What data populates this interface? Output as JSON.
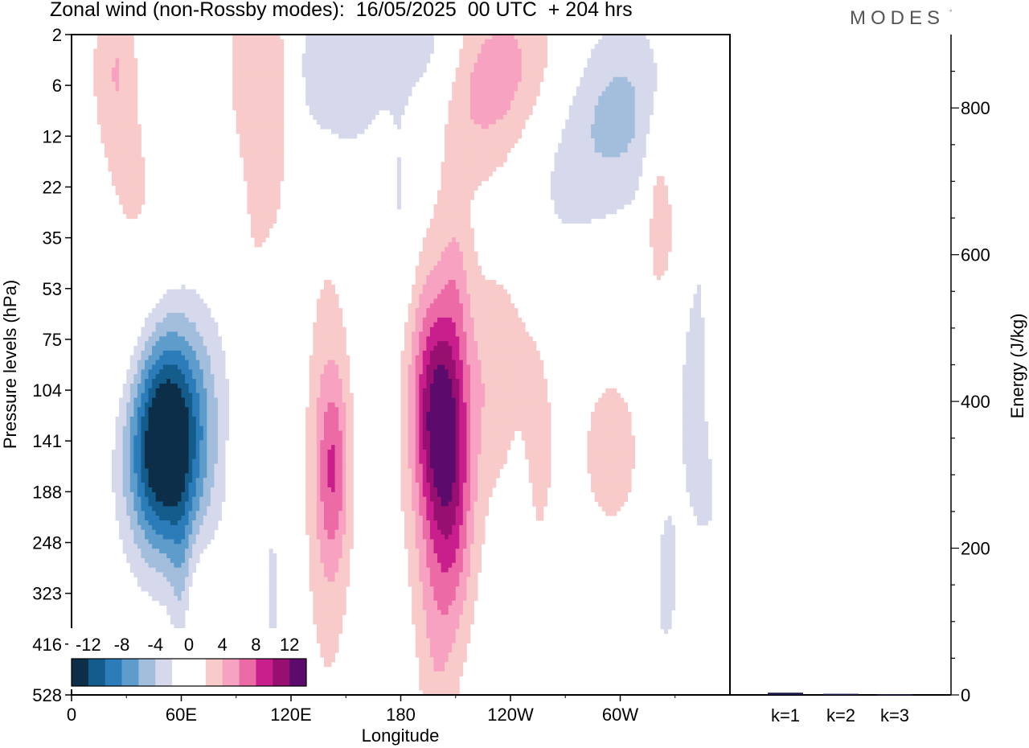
{
  "header": {
    "title": "Zonal wind (non-Rossby modes):  16/05/2025  00 UTC  + 204 hrs",
    "brand": "MODES",
    "brand_mark": "°"
  },
  "chart_data": [
    {
      "type": "heatmap",
      "title": "Zonal wind (non-Rossby modes):  16/05/2025  00 UTC  + 204 hrs",
      "xlabel": "Longitude",
      "ylabel": "Pressure levels (hPa)",
      "x_ticks": [
        "0",
        "60E",
        "120E",
        "180",
        "120W",
        "60W"
      ],
      "x_tick_values": [
        0,
        60,
        120,
        180,
        240,
        300
      ],
      "xlim": [
        0,
        360
      ],
      "y_ticks": [
        "2",
        "6",
        "12",
        "22",
        "35",
        "53",
        "75",
        "104",
        "141",
        "188",
        "248",
        "323",
        "416",
        "528"
      ],
      "colorbar": {
        "labels": [
          "-12",
          "-8",
          "-4",
          "0",
          "4",
          "8",
          "12"
        ],
        "label_values": [
          -12,
          -8,
          -4,
          0,
          4,
          8,
          12
        ],
        "colors": [
          "#0d2e49",
          "#145c8c",
          "#2b7cb8",
          "#5e9ccb",
          "#a3bedd",
          "#d6d9ec",
          "#ffffff",
          "#ffffff",
          "#f8cac9",
          "#f6a2c0",
          "#ec6ba6",
          "#c91f8c",
          "#971071",
          "#5c0a6b"
        ]
      },
      "anomalies": [
        {
          "lon": 50,
          "level": 141,
          "value": -13,
          "sx": 14,
          "sy": 1.5
        },
        {
          "lon": 58,
          "level": 125,
          "value": -5,
          "sx": 20,
          "sy": 1.8
        },
        {
          "lon": 203,
          "level": 130,
          "value": 7,
          "sx": 9,
          "sy": 1.3
        },
        {
          "lon": 203,
          "level": 150,
          "value": 4.5,
          "sx": 16,
          "sy": 2.6
        },
        {
          "lon": 143,
          "level": 165,
          "value": 5,
          "sx": 6,
          "sy": 1.3
        },
        {
          "lon": 140,
          "level": 170,
          "value": 3.5,
          "sx": 10,
          "sy": 3.5
        },
        {
          "lon": 195,
          "level": 85,
          "value": 3,
          "sx": 8,
          "sy": 1.5
        },
        {
          "lon": 200,
          "level": 340,
          "value": 3,
          "sx": 8,
          "sy": 3
        },
        {
          "lon": 210,
          "level": 230,
          "value": 3,
          "sx": 7,
          "sy": 1.5
        },
        {
          "lon": 195,
          "level": 3.2,
          "value": -6,
          "sx": 15,
          "sy": 1.3
        },
        {
          "lon": 150,
          "level": 4.3,
          "value": -4.5,
          "sx": 22,
          "sy": 1.3
        },
        {
          "lon": 205,
          "level": 6.2,
          "value": 5,
          "sx": 25,
          "sy": 1.3
        },
        {
          "lon": 250,
          "level": 4.5,
          "value": 4,
          "sx": 22,
          "sy": 1.4
        },
        {
          "lon": 300,
          "level": 8.5,
          "value": -4.5,
          "sx": 20,
          "sy": 1.4
        },
        {
          "lon": 265,
          "level": 14,
          "value": -3,
          "sx": 18,
          "sy": 1.6
        },
        {
          "lon": 40,
          "level": 13,
          "value": 3,
          "sx": 18,
          "sy": 1.8
        },
        {
          "lon": 25,
          "level": 3.2,
          "value": 3,
          "sx": 10,
          "sy": 1.3
        },
        {
          "lon": 45,
          "level": 5.5,
          "value": -3,
          "sx": 10,
          "sy": 1.3
        },
        {
          "lon": 36,
          "level": 88,
          "value": 3,
          "sx": 16,
          "sy": 1.4
        },
        {
          "lon": 330,
          "level": 30,
          "value": 3,
          "sx": 8,
          "sy": 1.3
        },
        {
          "lon": 340,
          "level": 40,
          "value": -2.5,
          "sx": 10,
          "sy": 3
        },
        {
          "lon": 352,
          "level": 110,
          "value": 3,
          "sx": 5,
          "sy": 1.3
        },
        {
          "lon": 350,
          "level": 150,
          "value": -3,
          "sx": 10,
          "sy": 1.6
        },
        {
          "lon": 325,
          "level": 300,
          "value": -2.5,
          "sx": 6,
          "sy": 1.6
        },
        {
          "lon": 295,
          "level": 150,
          "value": 3,
          "sx": 14,
          "sy": 1.4
        },
        {
          "lon": 255,
          "level": 150,
          "value": 2.5,
          "sx": 8,
          "sy": 1.8
        },
        {
          "lon": 235,
          "level": 90,
          "value": 3,
          "sx": 12,
          "sy": 1.6
        },
        {
          "lon": 210,
          "level": 55,
          "value": 3,
          "sx": 6,
          "sy": 1.3
        },
        {
          "lon": 180,
          "level": 25,
          "value": -2.5,
          "sx": 6,
          "sy": 1.3
        },
        {
          "lon": 105,
          "level": 25,
          "value": 3,
          "sx": 8,
          "sy": 1.8
        },
        {
          "lon": 10,
          "level": 40,
          "value": -2.5,
          "sx": 6,
          "sy": 1.2
        },
        {
          "lon": 60,
          "level": 320,
          "value": -2.5,
          "sx": 4,
          "sy": 1.3
        },
        {
          "lon": 110,
          "level": 330,
          "value": -2.5,
          "sx": 4,
          "sy": 1.4
        },
        {
          "lon": 90,
          "level": 170,
          "value": 2.5,
          "sx": 3,
          "sy": 1.2
        },
        {
          "lon": 70,
          "level": 420,
          "value": 2.5,
          "sx": 6,
          "sy": 1.2
        },
        {
          "lon": 245,
          "level": 260,
          "value": -2.5,
          "sx": 4,
          "sy": 1.6
        },
        {
          "lon": 108,
          "level": 70,
          "value": -2.5,
          "sx": 5,
          "sy": 1.2
        },
        {
          "lon": 320,
          "level": 25,
          "value": 3,
          "sx": 5,
          "sy": 1.3
        },
        {
          "lon": 115,
          "level": 4.5,
          "value": 3,
          "sx": 6,
          "sy": 1.4
        },
        {
          "lon": 95,
          "level": 3.5,
          "value": 3,
          "sx": 8,
          "sy": 1.4
        }
      ]
    },
    {
      "type": "bar",
      "ylabel": "Energy (J/kg)",
      "categories": [
        "k=1",
        "k=2",
        "k=3"
      ],
      "values": [
        3,
        1.5,
        1
      ],
      "ylim": [
        0,
        900
      ],
      "y_ticks": [
        0,
        200,
        400,
        600,
        800
      ]
    }
  ]
}
